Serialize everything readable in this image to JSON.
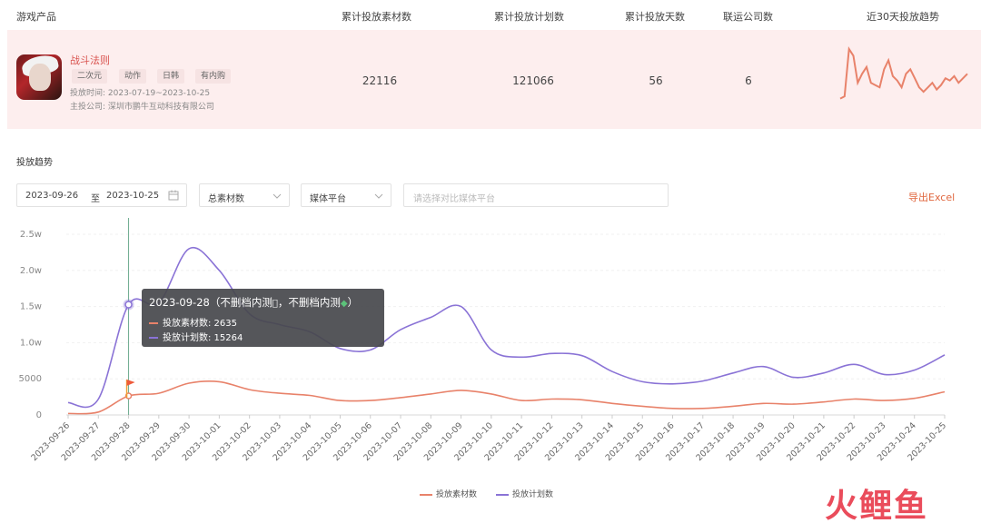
{
  "table": {
    "headers": [
      "游戏产品",
      "累计投放素材数",
      "累计投放计划数",
      "累计投放天数",
      "联运公司数",
      "近30天投放趋势"
    ],
    "row": {
      "game_name": "战斗法则",
      "tags": [
        "二次元",
        "动作",
        "日韩",
        "有内购"
      ],
      "period": "投放时间: 2023-07-19~2023-10-25",
      "company": "主投公司: 深圳市鹏牛互动科技有限公司",
      "materials": "22116",
      "plans": "121066",
      "days": "56",
      "companies": "6",
      "sparkline": [
        3,
        4,
        25,
        22,
        10,
        14,
        17,
        10,
        9,
        8,
        16,
        20,
        13,
        11,
        8,
        14,
        16,
        12,
        8,
        6,
        8,
        10,
        7,
        9,
        12,
        11,
        13,
        10,
        12,
        14
      ]
    }
  },
  "section_title": "投放趋势",
  "filters": {
    "date_from": "2023-09-26",
    "date_sep": "至",
    "date_to": "2023-10-25",
    "metric": "总素材数",
    "platform": "媒体平台",
    "compare_placeholder": "请选择对比媒体平台",
    "export": "导出Excel"
  },
  "colors": {
    "materials": "#e8826a",
    "plans": "#8a73d6",
    "accent": "#e0673f"
  },
  "chart_data": {
    "type": "line",
    "categories": [
      "2023-09-26",
      "2023-09-27",
      "2023-09-28",
      "2023-09-29",
      "2023-09-30",
      "2023-10-01",
      "2023-10-02",
      "2023-10-03",
      "2023-10-04",
      "2023-10-05",
      "2023-10-06",
      "2023-10-07",
      "2023-10-08",
      "2023-10-09",
      "2023-10-10",
      "2023-10-11",
      "2023-10-12",
      "2023-10-13",
      "2023-10-14",
      "2023-10-15",
      "2023-10-16",
      "2023-10-17",
      "2023-10-18",
      "2023-10-19",
      "2023-10-20",
      "2023-10-21",
      "2023-10-22",
      "2023-10-23",
      "2023-10-24",
      "2023-10-25"
    ],
    "y_ticks": [
      "0",
      "5000",
      "1.0w",
      "1.5w",
      "2.0w",
      "2.5w"
    ],
    "ylim": [
      0,
      25000
    ],
    "series": [
      {
        "name": "投放素材数",
        "values": [
          200,
          400,
          2635,
          3000,
          4400,
          4600,
          3500,
          3000,
          2700,
          2000,
          2000,
          2400,
          2900,
          3400,
          2900,
          2000,
          2200,
          2100,
          1600,
          1200,
          900,
          900,
          1200,
          1600,
          1500,
          1800,
          2200,
          2000,
          2300,
          3200
        ]
      },
      {
        "name": "投放计划数",
        "values": [
          1700,
          2200,
          15264,
          15500,
          23000,
          20000,
          14000,
          12500,
          11500,
          9200,
          9000,
          11800,
          13500,
          15000,
          9000,
          8000,
          8500,
          8200,
          6000,
          4600,
          4300,
          4700,
          5800,
          6700,
          5200,
          5800,
          7000,
          5600,
          6200,
          8300
        ]
      }
    ],
    "highlight_index": 2,
    "tooltip": {
      "title": "2023-09-28（不删档内测",
      "title_mid": "，不删档内测",
      "title_end": "）",
      "line1": "投放素材数: 2635",
      "line2": "投放计划数: 15264"
    },
    "legend": [
      "投放素材数",
      "投放计划数"
    ]
  },
  "watermark": "火鲤鱼"
}
